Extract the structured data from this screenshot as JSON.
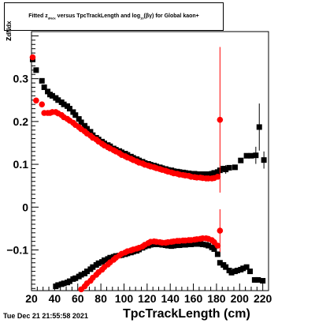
{
  "title": {
    "prefix": "Fitted  z",
    "sub1": "dNdx",
    "mid": "  versus  TpcTrackLength and log",
    "sub2": "10",
    "suffix": "(βγ) for Global kaon+"
  },
  "timestamp": "Tue Dec 21 21:55:58 2021",
  "chart_data": {
    "type": "scatter",
    "title": "Fitted z_dNdx versus TpcTrackLength and log10(βγ) for Global kaon+",
    "xlabel": "TpcTrackLength (cm)",
    "ylabel": "z_dNdx",
    "xlim": [
      20,
      225
    ],
    "ylim": [
      -0.195,
      0.41
    ],
    "x_ticks": [
      20,
      40,
      60,
      80,
      100,
      120,
      140,
      160,
      180,
      200,
      220
    ],
    "y_ticks": [
      -0.1,
      0,
      0.1,
      0.2,
      0.3
    ],
    "y_tick_labels": [
      "−0.1",
      "0",
      "0.1",
      "0.2",
      "0.3"
    ],
    "grid": false,
    "series": [
      {
        "color": "#000000",
        "marker": "square",
        "values": [
          [
            21,
            0.345
          ],
          [
            24,
            0.32
          ],
          [
            29,
            0.295
          ],
          [
            31,
            0.28
          ],
          [
            34,
            0.27
          ],
          [
            36,
            0.263
          ],
          [
            38,
            0.26
          ],
          [
            41,
            0.255
          ],
          [
            43,
            0.25
          ],
          [
            46,
            0.245
          ],
          [
            48,
            0.24
          ],
          [
            51,
            0.236
          ],
          [
            53,
            0.23
          ],
          [
            56,
            0.222
          ],
          [
            58,
            0.215
          ],
          [
            61,
            0.206
          ],
          [
            63,
            0.198
          ],
          [
            66,
            0.19
          ],
          [
            68,
            0.183
          ],
          [
            71,
            0.176
          ],
          [
            73,
            0.168
          ],
          [
            76,
            0.162
          ],
          [
            78,
            0.158
          ],
          [
            81,
            0.153
          ],
          [
            83,
            0.149
          ],
          [
            86,
            0.145
          ],
          [
            88,
            0.142
          ],
          [
            91,
            0.137
          ],
          [
            93,
            0.134
          ],
          [
            96,
            0.131
          ],
          [
            98,
            0.128
          ],
          [
            101,
            0.125
          ],
          [
            103,
            0.122
          ],
          [
            106,
            0.118
          ],
          [
            108,
            0.115
          ],
          [
            111,
            0.112
          ],
          [
            113,
            0.109
          ],
          [
            116,
            0.106
          ],
          [
            118,
            0.103
          ],
          [
            121,
            0.101
          ],
          [
            123,
            0.099
          ],
          [
            126,
            0.097
          ],
          [
            128,
            0.095
          ],
          [
            131,
            0.093
          ],
          [
            133,
            0.091
          ],
          [
            136,
            0.089
          ],
          [
            138,
            0.087
          ],
          [
            141,
            0.086
          ],
          [
            143,
            0.084
          ],
          [
            146,
            0.083
          ],
          [
            148,
            0.082
          ],
          [
            151,
            0.081
          ],
          [
            153,
            0.08
          ],
          [
            156,
            0.079
          ],
          [
            158,
            0.078
          ],
          [
            161,
            0.078
          ],
          [
            163,
            0.077
          ],
          [
            166,
            0.077
          ],
          [
            168,
            0.077
          ],
          [
            171,
            0.077
          ],
          [
            173,
            0.077
          ],
          [
            176,
            0.078
          ],
          [
            178,
            0.08
          ],
          [
            181,
            0.082
          ],
          [
            183,
            0.086
          ],
          [
            186,
            0.09
          ],
          [
            188,
            0.088
          ],
          [
            191,
            0.092
          ],
          [
            196,
            0.093
          ],
          [
            201,
            0.109
          ],
          [
            206,
            0.12
          ],
          [
            210,
            0.12
          ],
          [
            214,
            0.121
          ],
          [
            217,
            0.187
          ],
          [
            221,
            0.11
          ],
          [
            41,
            -0.185
          ],
          [
            43,
            -0.182
          ],
          [
            46,
            -0.18
          ],
          [
            48,
            -0.178
          ],
          [
            51,
            -0.176
          ],
          [
            53,
            -0.173
          ],
          [
            56,
            -0.168
          ],
          [
            58,
            -0.166
          ],
          [
            61,
            -0.162
          ],
          [
            63,
            -0.158
          ],
          [
            66,
            -0.155
          ],
          [
            68,
            -0.15
          ],
          [
            71,
            -0.145
          ],
          [
            73,
            -0.14
          ],
          [
            76,
            -0.135
          ],
          [
            78,
            -0.131
          ],
          [
            81,
            -0.128
          ],
          [
            83,
            -0.124
          ],
          [
            86,
            -0.121
          ],
          [
            88,
            -0.118
          ],
          [
            91,
            -0.116
          ],
          [
            93,
            -0.114
          ],
          [
            96,
            -0.113
          ],
          [
            98,
            -0.112
          ],
          [
            101,
            -0.11
          ],
          [
            103,
            -0.108
          ],
          [
            106,
            -0.106
          ],
          [
            108,
            -0.104
          ],
          [
            111,
            -0.102
          ],
          [
            113,
            -0.099
          ],
          [
            116,
            -0.095
          ],
          [
            118,
            -0.092
          ],
          [
            121,
            -0.09
          ],
          [
            123,
            -0.088
          ],
          [
            126,
            -0.087
          ],
          [
            128,
            -0.087
          ],
          [
            131,
            -0.087
          ],
          [
            133,
            -0.088
          ],
          [
            136,
            -0.089
          ],
          [
            138,
            -0.09
          ],
          [
            141,
            -0.091
          ],
          [
            143,
            -0.09
          ],
          [
            146,
            -0.089
          ],
          [
            148,
            -0.089
          ],
          [
            151,
            -0.088
          ],
          [
            153,
            -0.088
          ],
          [
            156,
            -0.087
          ],
          [
            158,
            -0.087
          ],
          [
            161,
            -0.086
          ],
          [
            163,
            -0.086
          ],
          [
            166,
            -0.086
          ],
          [
            168,
            -0.087
          ],
          [
            171,
            -0.088
          ],
          [
            173,
            -0.09
          ],
          [
            176,
            -0.094
          ],
          [
            178,
            -0.098
          ],
          [
            181,
            -0.11
          ],
          [
            183,
            -0.13
          ],
          [
            186,
            -0.135
          ],
          [
            188,
            -0.14
          ],
          [
            191,
            -0.148
          ],
          [
            193,
            -0.153
          ],
          [
            196,
            -0.15
          ],
          [
            198,
            -0.148
          ],
          [
            201,
            -0.146
          ],
          [
            203,
            -0.143
          ],
          [
            206,
            -0.14
          ],
          [
            209,
            -0.15
          ],
          [
            213,
            -0.17
          ],
          [
            216,
            -0.17
          ],
          [
            220,
            -0.172
          ]
        ],
        "errors": [
          [
            214,
            0.121,
            0.02
          ],
          [
            217,
            0.187,
            0.055
          ],
          [
            221,
            0.11,
            0.02
          ],
          [
            188,
            0.088,
            0.01
          ]
        ]
      },
      {
        "color": "#ff0000",
        "marker": "circle",
        "values": [
          [
            21,
            0.35
          ],
          [
            24,
            0.249
          ],
          [
            29,
            0.24
          ],
          [
            31,
            0.22
          ],
          [
            34,
            0.22
          ],
          [
            36,
            0.22
          ],
          [
            38,
            0.222
          ],
          [
            41,
            0.222
          ],
          [
            43,
            0.219
          ],
          [
            46,
            0.215
          ],
          [
            48,
            0.21
          ],
          [
            51,
            0.206
          ],
          [
            53,
            0.202
          ],
          [
            56,
            0.197
          ],
          [
            58,
            0.192
          ],
          [
            61,
            0.187
          ],
          [
            63,
            0.182
          ],
          [
            66,
            0.177
          ],
          [
            68,
            0.172
          ],
          [
            71,
            0.167
          ],
          [
            73,
            0.162
          ],
          [
            76,
            0.158
          ],
          [
            78,
            0.153
          ],
          [
            81,
            0.148
          ],
          [
            83,
            0.144
          ],
          [
            86,
            0.14
          ],
          [
            88,
            0.137
          ],
          [
            91,
            0.133
          ],
          [
            93,
            0.13
          ],
          [
            96,
            0.126
          ],
          [
            98,
            0.122
          ],
          [
            101,
            0.119
          ],
          [
            103,
            0.116
          ],
          [
            106,
            0.113
          ],
          [
            108,
            0.11
          ],
          [
            111,
            0.107
          ],
          [
            113,
            0.104
          ],
          [
            116,
            0.102
          ],
          [
            118,
            0.099
          ],
          [
            121,
            0.097
          ],
          [
            123,
            0.095
          ],
          [
            126,
            0.093
          ],
          [
            128,
            0.091
          ],
          [
            131,
            0.089
          ],
          [
            133,
            0.087
          ],
          [
            136,
            0.085
          ],
          [
            138,
            0.083
          ],
          [
            141,
            0.081
          ],
          [
            143,
            0.079
          ],
          [
            146,
            0.078
          ],
          [
            148,
            0.076
          ],
          [
            151,
            0.075
          ],
          [
            153,
            0.074
          ],
          [
            156,
            0.073
          ],
          [
            158,
            0.071
          ],
          [
            161,
            0.07
          ],
          [
            163,
            0.069
          ],
          [
            166,
            0.069
          ],
          [
            168,
            0.068
          ],
          [
            171,
            0.067
          ],
          [
            173,
            0.067
          ],
          [
            176,
            0.067
          ],
          [
            178,
            0.068
          ],
          [
            181,
            0.071
          ],
          [
            183,
            0.204
          ],
          [
            63,
            -0.192
          ],
          [
            66,
            -0.185
          ],
          [
            68,
            -0.178
          ],
          [
            71,
            -0.172
          ],
          [
            73,
            -0.165
          ],
          [
            76,
            -0.158
          ],
          [
            78,
            -0.152
          ],
          [
            81,
            -0.146
          ],
          [
            83,
            -0.14
          ],
          [
            86,
            -0.134
          ],
          [
            88,
            -0.129
          ],
          [
            91,
            -0.123
          ],
          [
            93,
            -0.118
          ],
          [
            96,
            -0.113
          ],
          [
            98,
            -0.109
          ],
          [
            101,
            -0.106
          ],
          [
            103,
            -0.103
          ],
          [
            106,
            -0.101
          ],
          [
            108,
            -0.099
          ],
          [
            111,
            -0.097
          ],
          [
            113,
            -0.095
          ],
          [
            116,
            -0.092
          ],
          [
            118,
            -0.088
          ],
          [
            121,
            -0.084
          ],
          [
            123,
            -0.081
          ],
          [
            126,
            -0.08
          ],
          [
            128,
            -0.081
          ],
          [
            131,
            -0.082
          ],
          [
            133,
            -0.083
          ],
          [
            136,
            -0.083
          ],
          [
            138,
            -0.082
          ],
          [
            141,
            -0.081
          ],
          [
            143,
            -0.08
          ],
          [
            146,
            -0.079
          ],
          [
            148,
            -0.079
          ],
          [
            151,
            -0.078
          ],
          [
            153,
            -0.078
          ],
          [
            156,
            -0.077
          ],
          [
            158,
            -0.077
          ],
          [
            161,
            -0.076
          ],
          [
            163,
            -0.075
          ],
          [
            166,
            -0.074
          ],
          [
            168,
            -0.073
          ],
          [
            171,
            -0.073
          ],
          [
            173,
            -0.074
          ],
          [
            176,
            -0.077
          ],
          [
            178,
            -0.082
          ],
          [
            181,
            -0.09
          ],
          [
            183,
            -0.055
          ]
        ],
        "errors": [
          [
            183,
            0.204,
            0.17
          ],
          [
            183,
            -0.055,
            0.05
          ]
        ]
      }
    ]
  }
}
